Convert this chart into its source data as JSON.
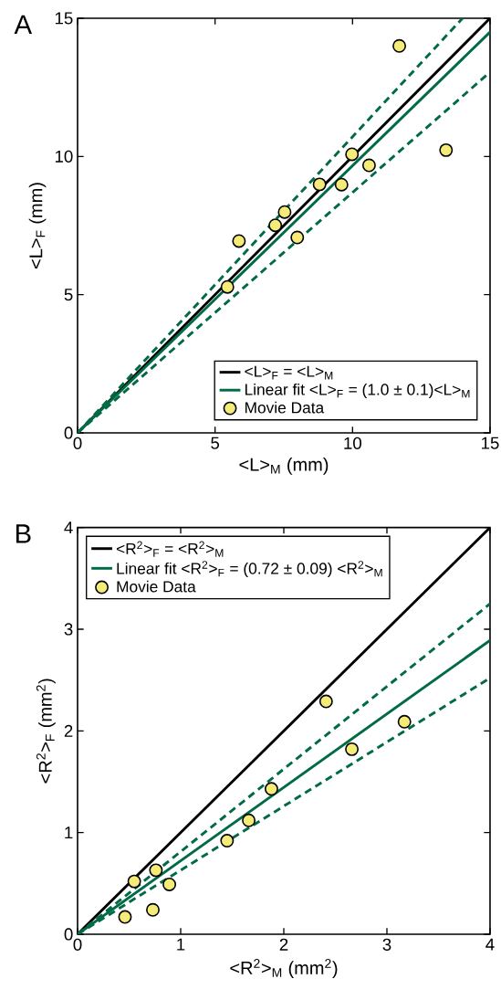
{
  "chart_data": [
    {
      "type": "scatter",
      "title": "A",
      "xlabel": "<L>$_{M}$ (mm)",
      "ylabel": "<L>$_{F}$ (mm)",
      "xlim": [
        0,
        15
      ],
      "ylim": [
        0,
        15
      ],
      "xticks": [
        0,
        5,
        10,
        15
      ],
      "yticks": [
        0,
        5,
        10,
        15
      ],
      "legend": "bottom right",
      "series": [
        {
          "name": "<L>$_{F}$ = <L>$_{M}$",
          "type": "line",
          "color": "#000000",
          "line_style": "solid",
          "x": [
            0,
            15
          ],
          "values": [
            0,
            15
          ]
        },
        {
          "name": "Linear fit <L>$_{F}$ = (1.0 ± 0.1)<L>$_{M}$",
          "type": "line",
          "color": "#006b45",
          "line_style": "solid",
          "x": [
            0,
            15
          ],
          "values": [
            0,
            14.5
          ]
        },
        {
          "type": "line",
          "color": "#006b45",
          "line_style": "dashed",
          "x": [
            0,
            14
          ],
          "values": [
            0,
            15
          ]
        },
        {
          "type": "line",
          "color": "#006b45",
          "line_style": "dashed",
          "x": [
            0,
            15
          ],
          "values": [
            0,
            13.05
          ]
        },
        {
          "name": "Movie Data",
          "type": "scatter",
          "color": "#f5eb78",
          "marker": "circle",
          "x": [
            5.45,
            5.87,
            7.19,
            7.53,
            7.99,
            8.8,
            9.6,
            9.98,
            10.6,
            11.7,
            13.4
          ],
          "values": [
            5.28,
            6.94,
            7.51,
            7.99,
            7.07,
            8.99,
            8.98,
            10.08,
            9.68,
            14.0,
            10.23
          ]
        }
      ]
    },
    {
      "type": "scatter",
      "title": "B",
      "xlabel": "<R$^{2}$>$_{M}$ (mm$^{2}$)",
      "ylabel": "<R$^{2}$>$_{F}$ (mm$^{2}$)",
      "xlim": [
        0,
        4
      ],
      "ylim": [
        0,
        4
      ],
      "xticks": [
        0,
        1,
        2,
        3,
        4
      ],
      "yticks": [
        0,
        1,
        2,
        3,
        4
      ],
      "legend": "top left",
      "series": [
        {
          "name": "<R$^{2}$>$_{F}$ = <R$^{2}$>$_{M}$",
          "type": "line",
          "color": "#000000",
          "line_style": "solid",
          "x": [
            0,
            4
          ],
          "values": [
            0,
            4
          ]
        },
        {
          "name": "Linear fit <R$^{2}$>$_{F}$ = (0.72 ± 0.09) <R$^{2}$>$_{M}$",
          "type": "line",
          "color": "#006b45",
          "line_style": "solid",
          "x": [
            0,
            4
          ],
          "values": [
            0,
            2.89
          ]
        },
        {
          "type": "line",
          "color": "#006b45",
          "line_style": "dashed",
          "x": [
            0,
            4
          ],
          "values": [
            0,
            3.25
          ]
        },
        {
          "type": "line",
          "color": "#006b45",
          "line_style": "dashed",
          "x": [
            0,
            4
          ],
          "values": [
            0,
            2.52
          ]
        },
        {
          "name": "Movie Data",
          "type": "scatter",
          "color": "#f5eb78",
          "marker": "circle",
          "x": [
            0.46,
            0.55,
            0.73,
            0.76,
            0.89,
            1.45,
            1.66,
            1.88,
            2.41,
            2.66,
            3.17
          ],
          "values": [
            0.17,
            0.52,
            0.24,
            0.63,
            0.49,
            0.92,
            1.12,
            1.43,
            2.29,
            1.82,
            2.09
          ]
        }
      ]
    }
  ]
}
